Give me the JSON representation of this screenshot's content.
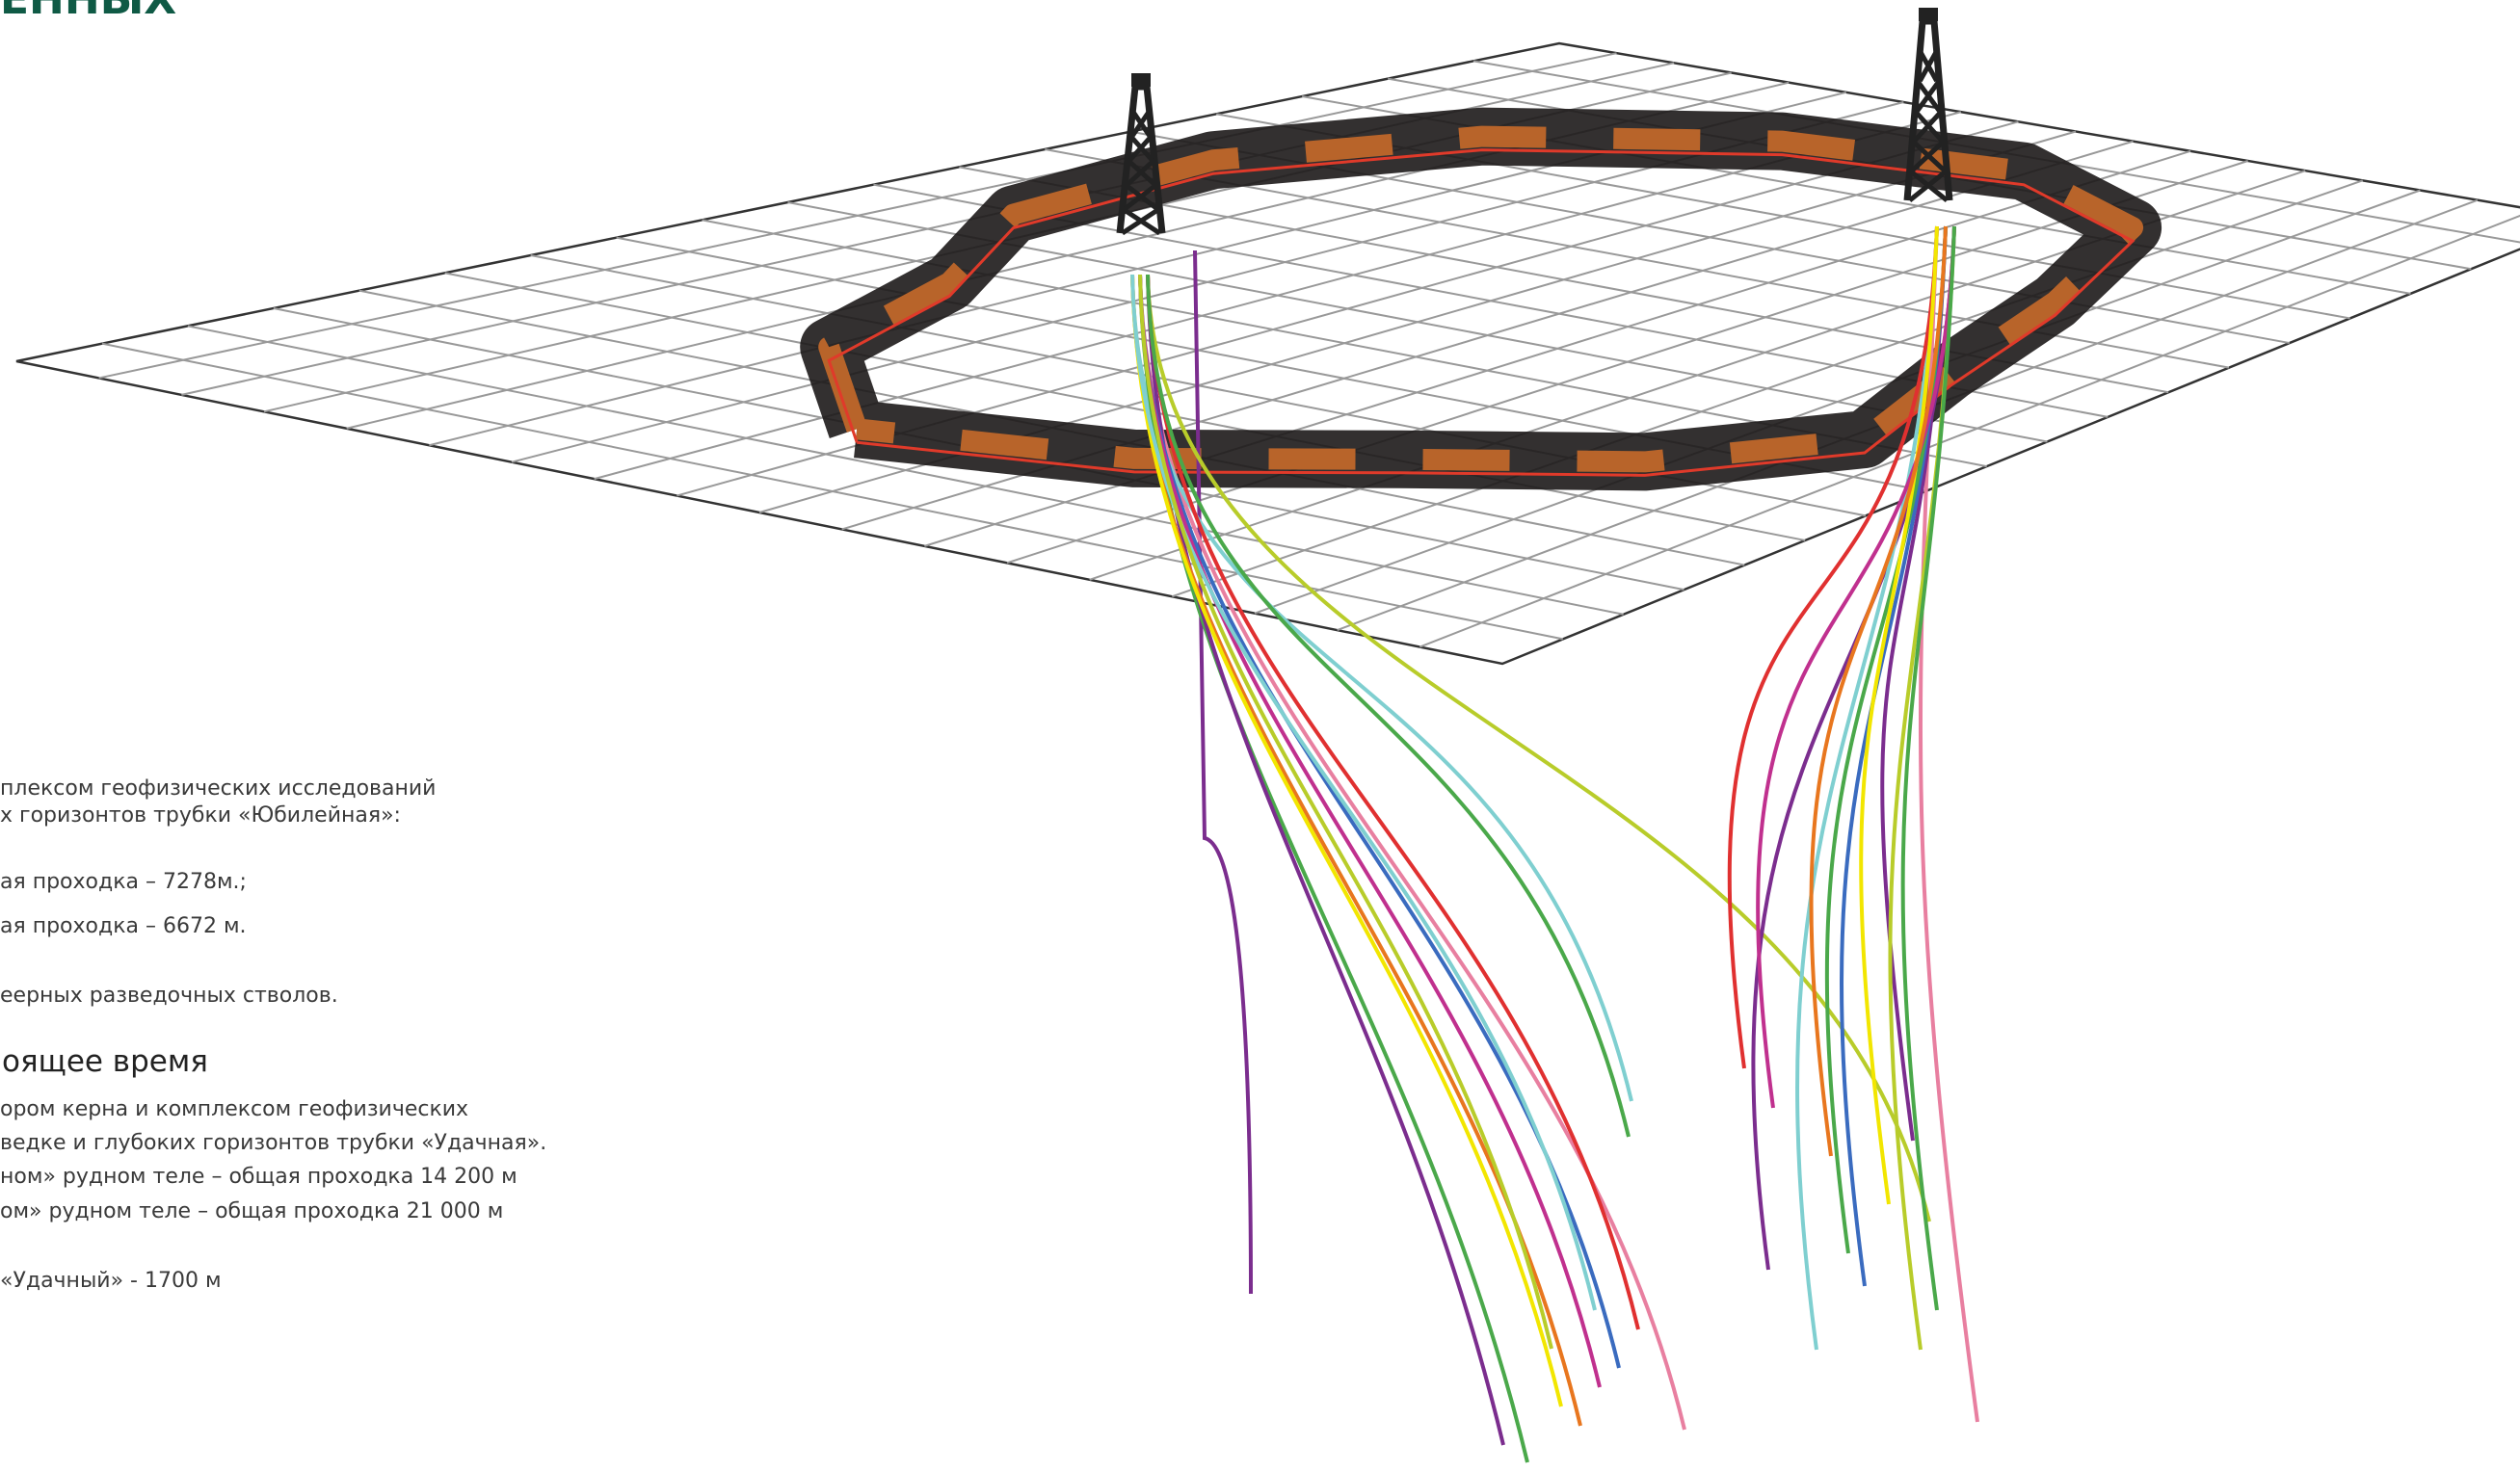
{
  "header": {
    "title": "ЕННЫХ"
  },
  "body": {
    "paragraph1": [
      "плексом геофизических исследований",
      "х горизонтов трубки «Юбилейная»:"
    ],
    "list1": [
      "ая проходка – 7278м.;",
      "ая проходка – 6672 м."
    ],
    "paragraph2": "еерных разведочных стволов.",
    "section": {
      "heading": "оящее время",
      "lines": [
        "ором керна и комплексом геофизических",
        "ведке и глубоких горизонтов трубки «Удачная».",
        "ном» рудном теле – общая проходка 14 200 м",
        "ом» рудном теле – общая проходка 21 000 м",
        "«Удачный» - 1700 м"
      ]
    }
  }
}
